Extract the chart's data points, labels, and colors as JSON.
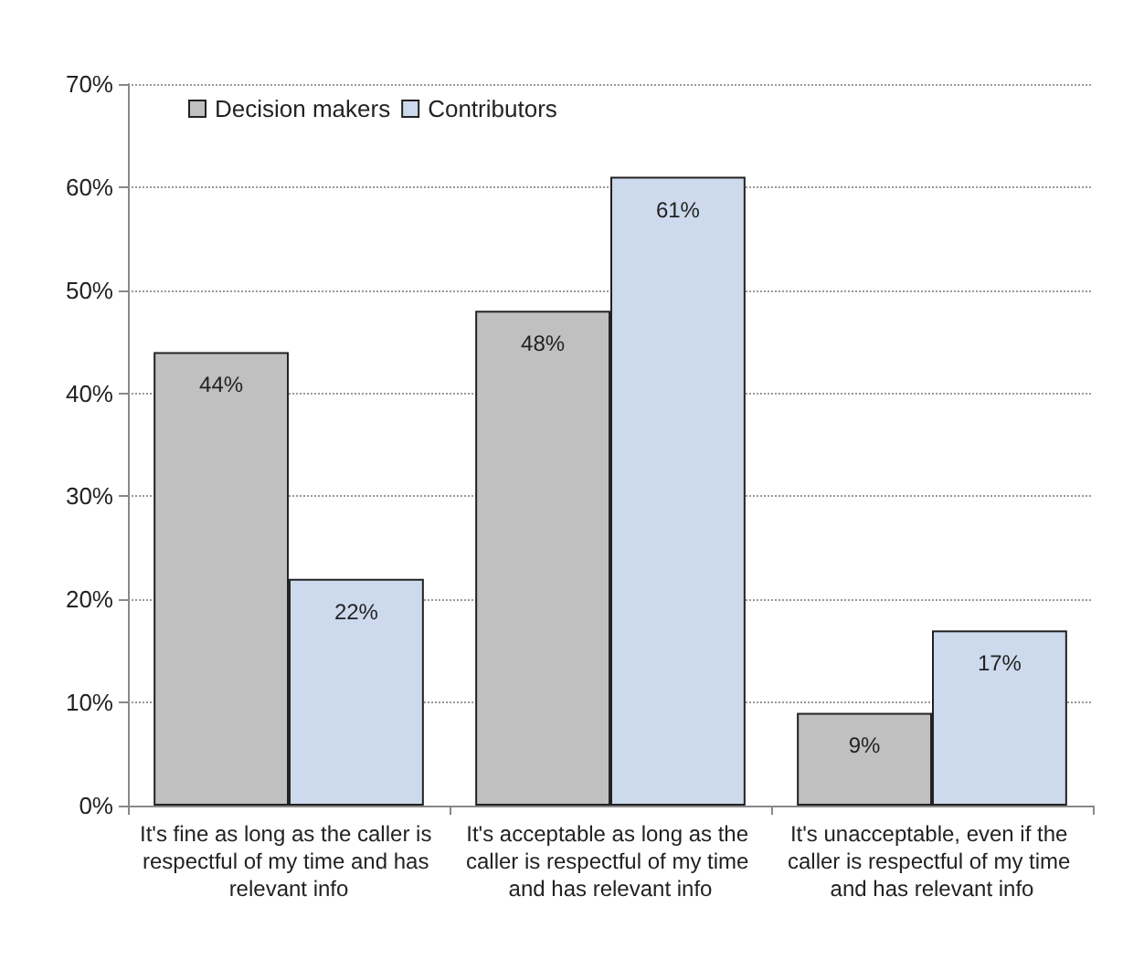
{
  "chart_data": {
    "type": "bar",
    "categories": [
      "It's fine as long as the caller is respectful of my time and has relevant info",
      "It's acceptable as long as the caller is respectful of my time and has relevant info",
      "It's unacceptable, even if the caller is respectful of my time and has relevant info"
    ],
    "series": [
      {
        "name": "Decision makers",
        "color": "#c0c0c0",
        "values": [
          44,
          48,
          9
        ],
        "value_labels": [
          "44%",
          "48%",
          "9%"
        ]
      },
      {
        "name": "Contributors",
        "color": "#cdd9ec",
        "values": [
          22,
          61,
          17
        ],
        "value_labels": [
          "22%",
          "61%",
          "17%"
        ]
      }
    ],
    "ylim": [
      0,
      70
    ],
    "yticks": [
      {
        "value": 0,
        "label": "0%"
      },
      {
        "value": 10,
        "label": "10%"
      },
      {
        "value": 20,
        "label": "20%"
      },
      {
        "value": 30,
        "label": "30%"
      },
      {
        "value": 40,
        "label": "40%"
      },
      {
        "value": 50,
        "label": "50%"
      },
      {
        "value": 60,
        "label": "60%"
      },
      {
        "value": 70,
        "label": "70%"
      }
    ],
    "grid": "y",
    "legend": "top left"
  }
}
